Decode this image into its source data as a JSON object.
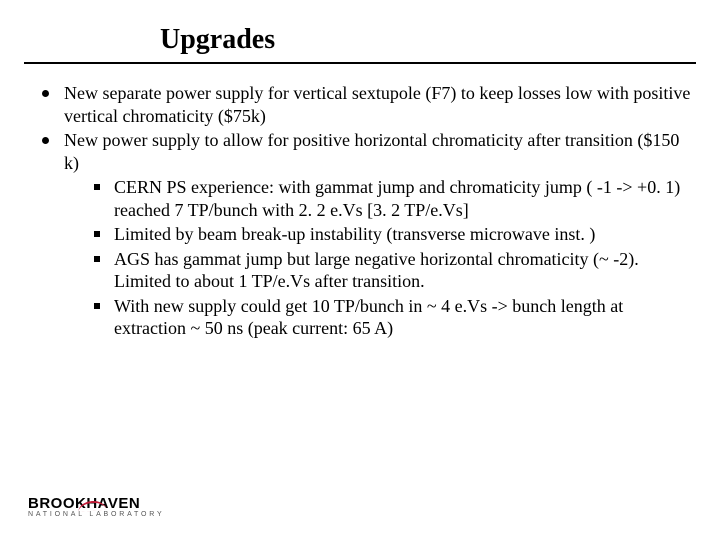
{
  "title": "Upgrades",
  "bullets": [
    {
      "text": "New separate power supply for vertical sextupole (F7) to keep losses low with positive vertical chromaticity ($75k)"
    },
    {
      "text": "New power supply to allow for positive horizontal chromaticity after transition ($150 k)",
      "sub": [
        "CERN PS experience: with gammat jump and chromaticity jump ( -1 -> +0. 1) reached 7 TP/bunch with 2. 2 e.Vs [3. 2 TP/e.Vs]",
        "Limited by beam break-up instability (transverse microwave inst. )",
        "AGS has gammat jump but large negative horizontal chromaticity (~ -2). Limited to about 1 TP/e.Vs after transition.",
        "With new supply could get 10 TP/bunch in ~ 4 e.Vs -> bunch length at extraction ~ 50 ns (peak current: 65 A)"
      ]
    }
  ],
  "logo": {
    "main": "BROOKHAVEN",
    "sub": "NATIONAL LABORATORY"
  },
  "colors": {
    "text": "#000000",
    "background": "#ffffff",
    "rule": "#000000",
    "logo_accent": "#c41e3a",
    "logo_sub": "#555555"
  },
  "fonts": {
    "title_size_pt": 28,
    "body_size_pt": 18,
    "title_weight": "bold",
    "family": "Times New Roman"
  }
}
